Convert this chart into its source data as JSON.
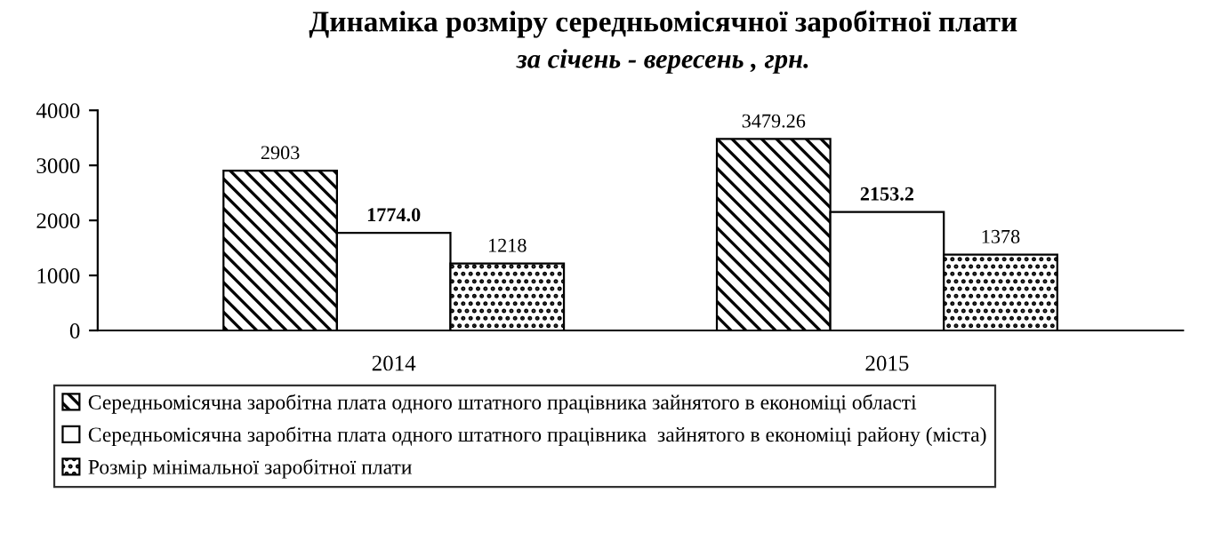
{
  "chart_data": {
    "type": "bar",
    "title": "Динаміка розміру середньомісячної заробітної плати",
    "subtitle": "за січень - вересень , грн.",
    "categories": [
      "2014",
      "2015"
    ],
    "series": [
      {
        "name": "Середньомісячна заробітна плата одного штатного працівника зайнятого в економіці області",
        "color": "#000000",
        "values": [
          2903,
          3479.26
        ],
        "value_labels": [
          "2903",
          "3479.26"
        ]
      },
      {
        "name": "Середньомісячна заробітна плата одного штатного працівника  зайнятого в економіці району (міста)",
        "color": "#ffffff",
        "values": [
          1774.0,
          2153.2
        ],
        "value_labels": [
          "1774.0",
          "2153.2"
        ]
      },
      {
        "name": "Розмір мінімальної заробітної плати",
        "color": "#000000",
        "values": [
          1218,
          1378
        ],
        "value_labels": [
          "1218",
          "1378"
        ]
      }
    ],
    "ylim": [
      0,
      4000
    ],
    "yticks": [
      0,
      1000,
      2000,
      3000,
      4000
    ],
    "grid": false,
    "legend": "bottom"
  }
}
